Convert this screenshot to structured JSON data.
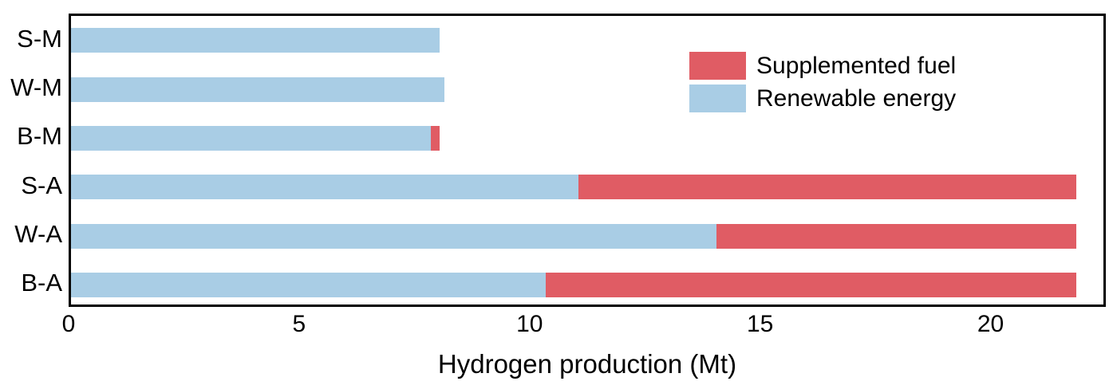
{
  "chart_data": {
    "type": "bar",
    "orientation": "horizontal",
    "stacked": true,
    "title": "",
    "xlabel": "Hydrogen production (Mt)",
    "ylabel": "",
    "xlim": [
      0,
      22.5
    ],
    "xticks": [
      0,
      5,
      10,
      15,
      20
    ],
    "grid": false,
    "legend_position": "upper-right-inside",
    "categories": [
      "S-M",
      "W-M",
      "B-M",
      "S-A",
      "W-A",
      "B-A"
    ],
    "series": [
      {
        "name": "Renewable energy",
        "color": "#A9CDE5",
        "values": [
          8.0,
          8.1,
          7.8,
          11.0,
          14.0,
          10.3
        ]
      },
      {
        "name": "Supplemented fuel",
        "color": "#E05C64",
        "values": [
          0,
          0,
          0.2,
          10.8,
          7.8,
          11.5
        ]
      }
    ],
    "bar_totals": [
      8.0,
      8.1,
      8.0,
      21.8,
      21.8,
      21.8
    ],
    "legend": [
      {
        "label": "Supplemented fuel",
        "color": "#E05C64"
      },
      {
        "label": "Renewable energy",
        "color": "#A9CDE5"
      }
    ]
  },
  "colors": {
    "supplemented_fuel": "#E05C64",
    "renewable_energy": "#A9CDE5",
    "axis": "#000000",
    "background": "#ffffff"
  }
}
